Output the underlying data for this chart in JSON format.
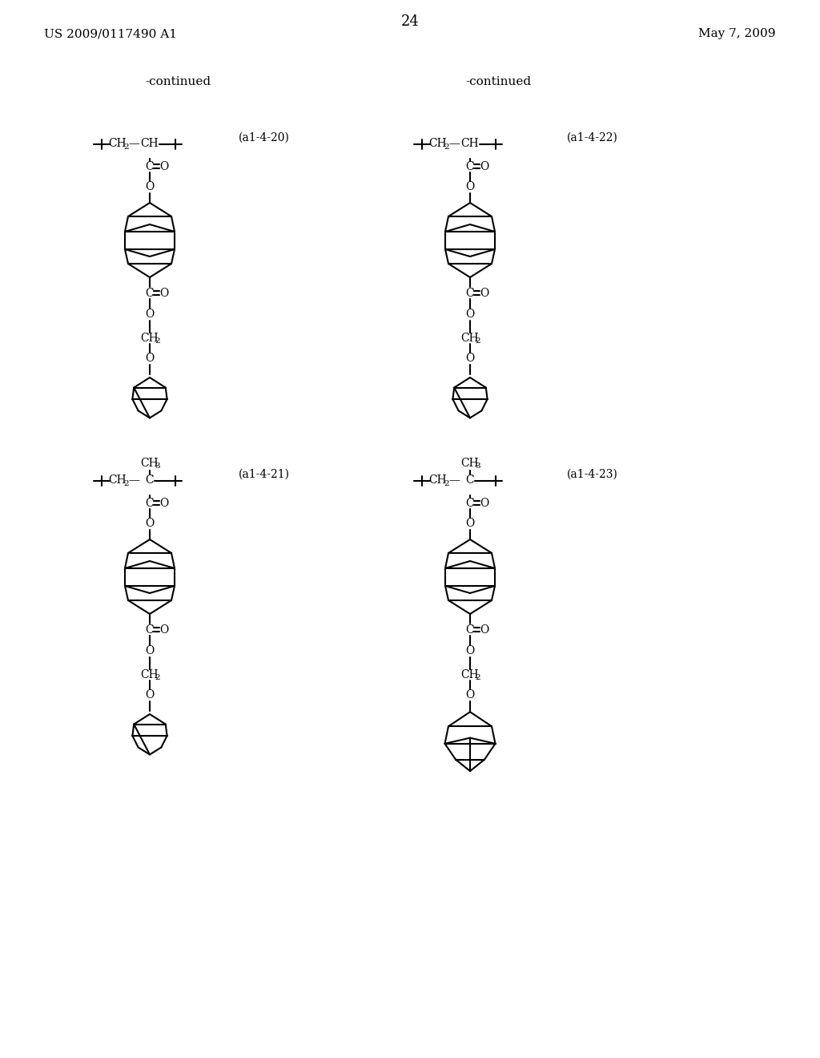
{
  "page_number": "24",
  "patent_left": "US 2009/0117490 A1",
  "patent_right": "May 7, 2009",
  "continued_left": "-continued",
  "continued_right": "-continued",
  "label_a1_4_20": "(a1-4-20)",
  "label_a1_4_21": "(a1-4-21)",
  "label_a1_4_22": "(a1-4-22)",
  "label_a1_4_23": "(a1-4-23)",
  "bg_color": "#ffffff",
  "text_color": "#000000",
  "line_color": "#000000"
}
